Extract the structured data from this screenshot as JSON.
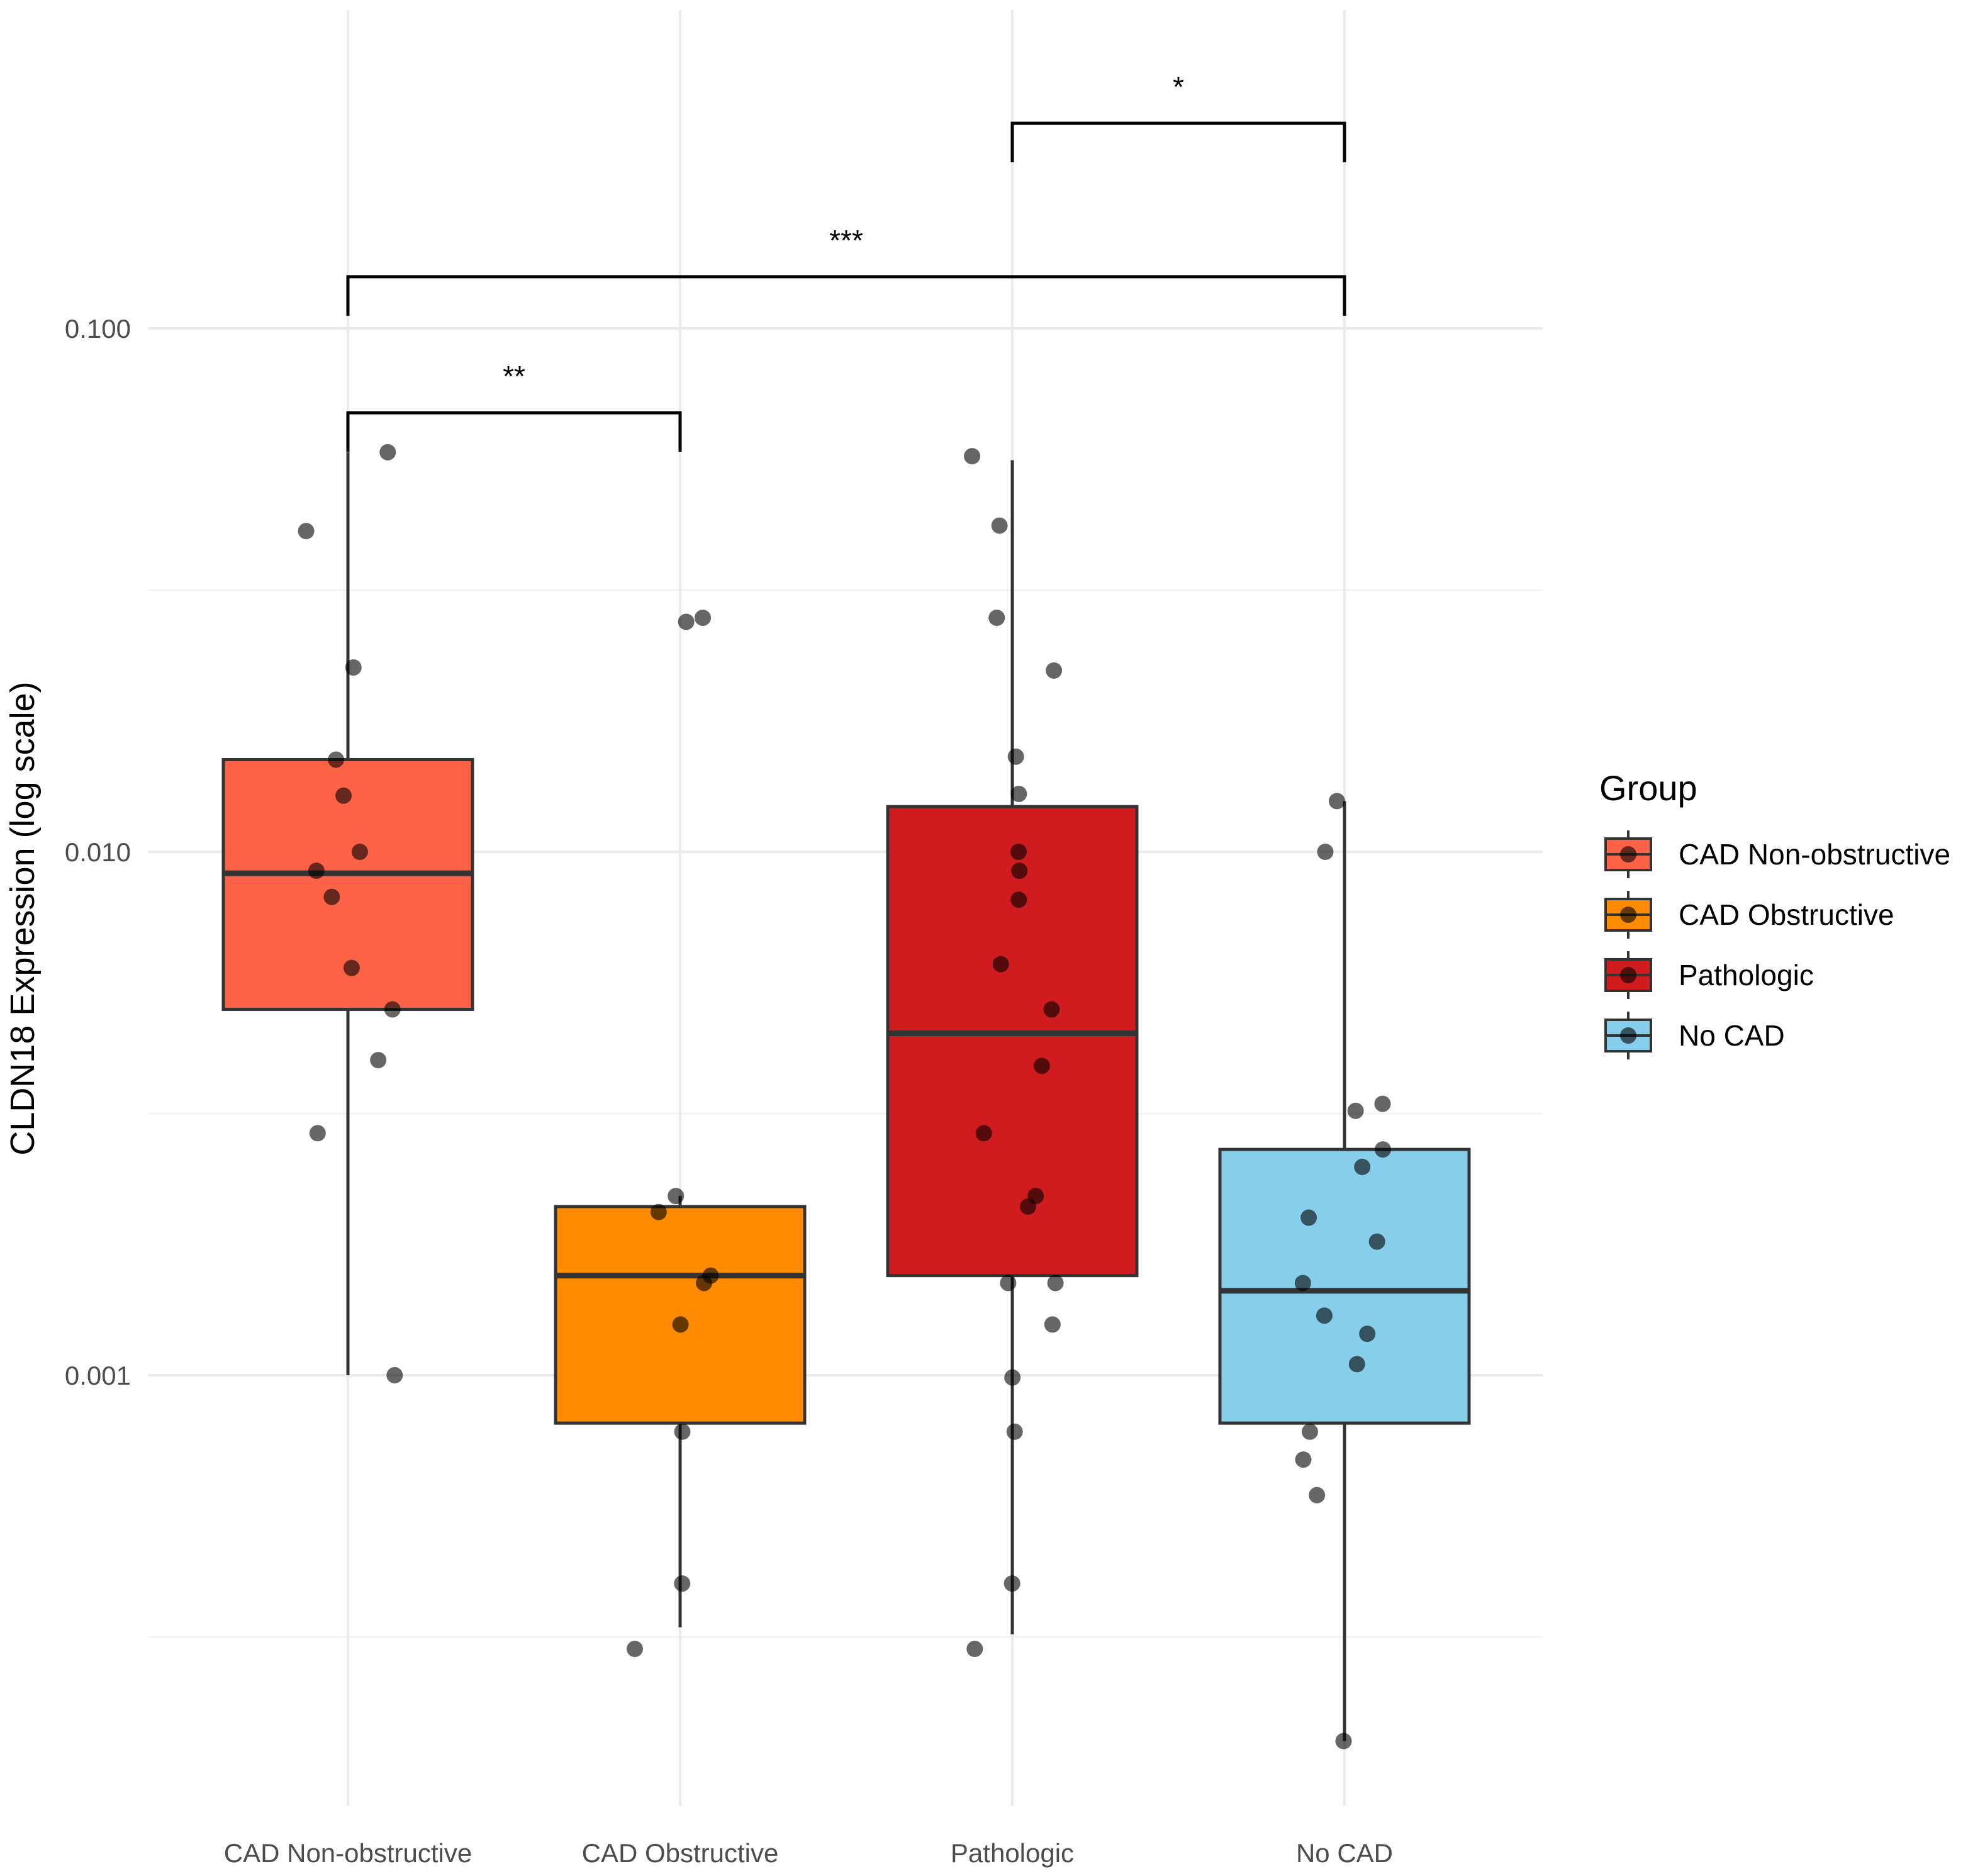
{
  "chart_data": {
    "type": "box",
    "ylabel": "CLDN18 Expression (log scale)",
    "yscale": "log",
    "ylim": [
      6e-05,
      0.33
    ],
    "yticks": [
      0.001,
      0.01,
      0.1
    ],
    "ytick_labels": [
      "0.001",
      "0.010",
      "0.100"
    ],
    "categories": [
      "CAD Non-obstructive",
      "CAD Obstructive",
      "Pathologic",
      "No CAD"
    ],
    "grid": true,
    "legend": {
      "title": "Group",
      "position": "right",
      "entries": [
        "CAD Non-obstructive",
        "CAD Obstructive",
        "Pathologic",
        "No CAD"
      ]
    },
    "series": [
      {
        "name": "CAD Non-obstructive",
        "color": "#FF6347",
        "q1": 0.005,
        "median": 0.0091,
        "q3": 0.015,
        "whisker_low": 0.001,
        "whisker_high": 0.058,
        "points": [
          0.058,
          0.041,
          0.0225,
          0.015,
          0.0128,
          0.01,
          0.0092,
          0.0082,
          0.006,
          0.005,
          0.004,
          0.0029,
          0.001
        ]
      },
      {
        "name": "CAD Obstructive",
        "color": "#FF8C00",
        "q1": 0.00081,
        "median": 0.00155,
        "q3": 0.0021,
        "whisker_low": 0.00033,
        "whisker_high": 0.0022,
        "points": [
          0.028,
          0.0275,
          0.0022,
          0.00205,
          0.00155,
          0.0015,
          0.00125,
          0.00078,
          0.0004,
          0.0003
        ]
      },
      {
        "name": "Pathologic",
        "color": "#D01C1F",
        "q1": 0.00155,
        "median": 0.0045,
        "q3": 0.0122,
        "whisker_low": 0.00032,
        "whisker_high": 0.056,
        "points": [
          0.057,
          0.042,
          0.028,
          0.0222,
          0.0152,
          0.0129,
          0.01,
          0.0092,
          0.0081,
          0.0061,
          0.005,
          0.0039,
          0.0029,
          0.0022,
          0.0021,
          0.0015,
          0.0015,
          0.00125,
          0.00099,
          0.00078,
          0.0004,
          0.0003
        ]
      },
      {
        "name": "No CAD",
        "color": "#87CEEB",
        "q1": 0.00081,
        "median": 0.00145,
        "q3": 0.0027,
        "whisker_low": 0.0002,
        "whisker_high": 0.0125,
        "points": [
          0.0125,
          0.01,
          0.0033,
          0.0032,
          0.0027,
          0.0025,
          0.002,
          0.0018,
          0.0015,
          0.0013,
          0.0012,
          0.00105,
          0.00078,
          0.00069,
          0.00059,
          0.0002
        ]
      }
    ],
    "significance": [
      {
        "from": "CAD Non-obstructive",
        "to": "CAD Obstructive",
        "label": "**"
      },
      {
        "from": "CAD Non-obstructive",
        "to": "No CAD",
        "label": "***"
      },
      {
        "from": "Pathologic",
        "to": "No CAD",
        "label": "*"
      }
    ],
    "significance_bar_levels": [
      0.069,
      0.1255,
      0.2465
    ]
  }
}
